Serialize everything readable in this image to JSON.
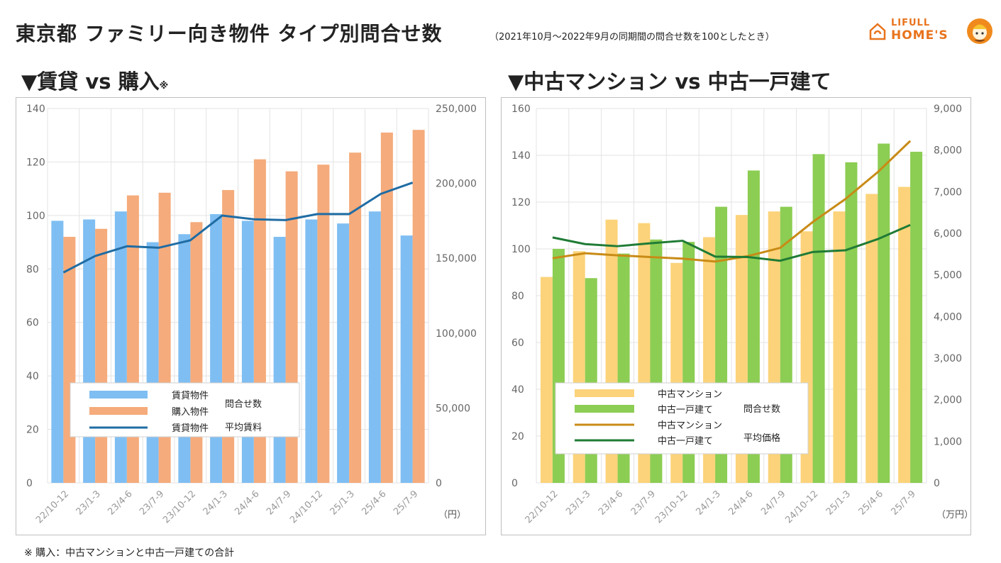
{
  "header": {
    "title": "東京都 ファミリー向き物件 タイプ別問合せ数",
    "subtitle": "（2021年10月～2022年9月の同期間の問合せ数を100としたとき）"
  },
  "logo": {
    "top": "LIFULL",
    "bottom": "HOME'S"
  },
  "footnote": "※ 購入：中古マンションと中古一戸建ての合計",
  "chart_data": [
    {
      "type": "bar",
      "title": "▼賃貸 vs 購入",
      "title_mark": "※",
      "categories": [
        "22/10-12",
        "23/1-3",
        "23/4-6",
        "23/7-9",
        "23/10-12",
        "24/1-3",
        "24/4-6",
        "24/7-9",
        "24/10-12",
        "25/1-3",
        "25/4-6",
        "25/7-9"
      ],
      "ylim": [
        0,
        140
      ],
      "yticks": [
        "0",
        "20",
        "40",
        "60",
        "80",
        "100",
        "120",
        "140"
      ],
      "y2lim": [
        0,
        250000
      ],
      "y2ticks": [
        "0",
        "50,000",
        "100,000",
        "150,000",
        "200,000",
        "250,000"
      ],
      "y2unit": "（円）",
      "grid": true,
      "series": [
        {
          "name": "賃貸物件",
          "kind": "bar",
          "axis": "left",
          "color": "#7fbef2",
          "values": [
            98,
            98.5,
            101.5,
            90,
            93,
            100.5,
            98,
            92,
            98.5,
            97,
            101.5,
            92.5
          ]
        },
        {
          "name": "購入物件",
          "kind": "bar",
          "axis": "left",
          "color": "#f5ab7b",
          "values": [
            92,
            95,
            107.5,
            108.5,
            97.5,
            109.5,
            121,
            116.5,
            119,
            123.5,
            131,
            132
          ]
        },
        {
          "name": "賃貸物件",
          "kind": "line",
          "axis": "right",
          "color": "#1f6ca4",
          "values": [
            140500,
            151500,
            158000,
            157000,
            162000,
            178500,
            176000,
            175500,
            179500,
            179500,
            193000,
            200500
          ]
        }
      ],
      "legend": {
        "placement": "bottom-left",
        "items": [
          "賃貸物件",
          "購入物件",
          "賃貸物件"
        ],
        "group1": "問合せ数",
        "group2": "平均賃料"
      }
    },
    {
      "type": "bar",
      "title": "▼中古マンション vs 中古一戸建て",
      "categories": [
        "22/10-12",
        "23/1-3",
        "23/4-6",
        "23/7-9",
        "23/10-12",
        "24/1-3",
        "24/4-6",
        "24/7-9",
        "24/10-12",
        "25/1-3",
        "25/4-6",
        "25/7-9"
      ],
      "ylim": [
        0,
        160
      ],
      "yticks": [
        "0",
        "20",
        "40",
        "60",
        "80",
        "100",
        "120",
        "140",
        "160"
      ],
      "y2lim": [
        0,
        9000
      ],
      "y2ticks": [
        "0",
        "1,000",
        "2,000",
        "3,000",
        "4,000",
        "5,000",
        "6,000",
        "7,000",
        "8,000",
        "9,000"
      ],
      "y2unit": "（万円）",
      "grid": true,
      "series": [
        {
          "name": "中古マンション",
          "kind": "bar",
          "axis": "left",
          "color": "#fcd37a",
          "values": [
            88,
            99,
            112.5,
            111,
            94,
            105,
            114.5,
            116,
            107.5,
            116,
            123.5,
            126.5
          ]
        },
        {
          "name": "中古一戸建て",
          "kind": "bar",
          "axis": "left",
          "color": "#8ccd53",
          "values": [
            100,
            87.5,
            98,
            104,
            103,
            118,
            133.5,
            118,
            140.5,
            137,
            145,
            141.5
          ]
        },
        {
          "name": "中古マンション",
          "kind": "line",
          "axis": "right",
          "color": "#c88b16",
          "values": [
            5400,
            5520,
            5470,
            5430,
            5390,
            5320,
            5450,
            5650,
            6270,
            6820,
            7470,
            8220
          ]
        },
        {
          "name": "中古一戸建て",
          "kind": "line",
          "axis": "right",
          "color": "#1f7b35",
          "values": [
            5900,
            5740,
            5690,
            5760,
            5820,
            5440,
            5430,
            5340,
            5550,
            5590,
            5860,
            6200
          ]
        }
      ],
      "legend": {
        "placement": "bottom-center",
        "items": [
          "中古マンション",
          "中古一戸建て",
          "中古マンション",
          "中古一戸建て"
        ],
        "group1": "問合せ数",
        "group2": "平均価格"
      }
    }
  ]
}
